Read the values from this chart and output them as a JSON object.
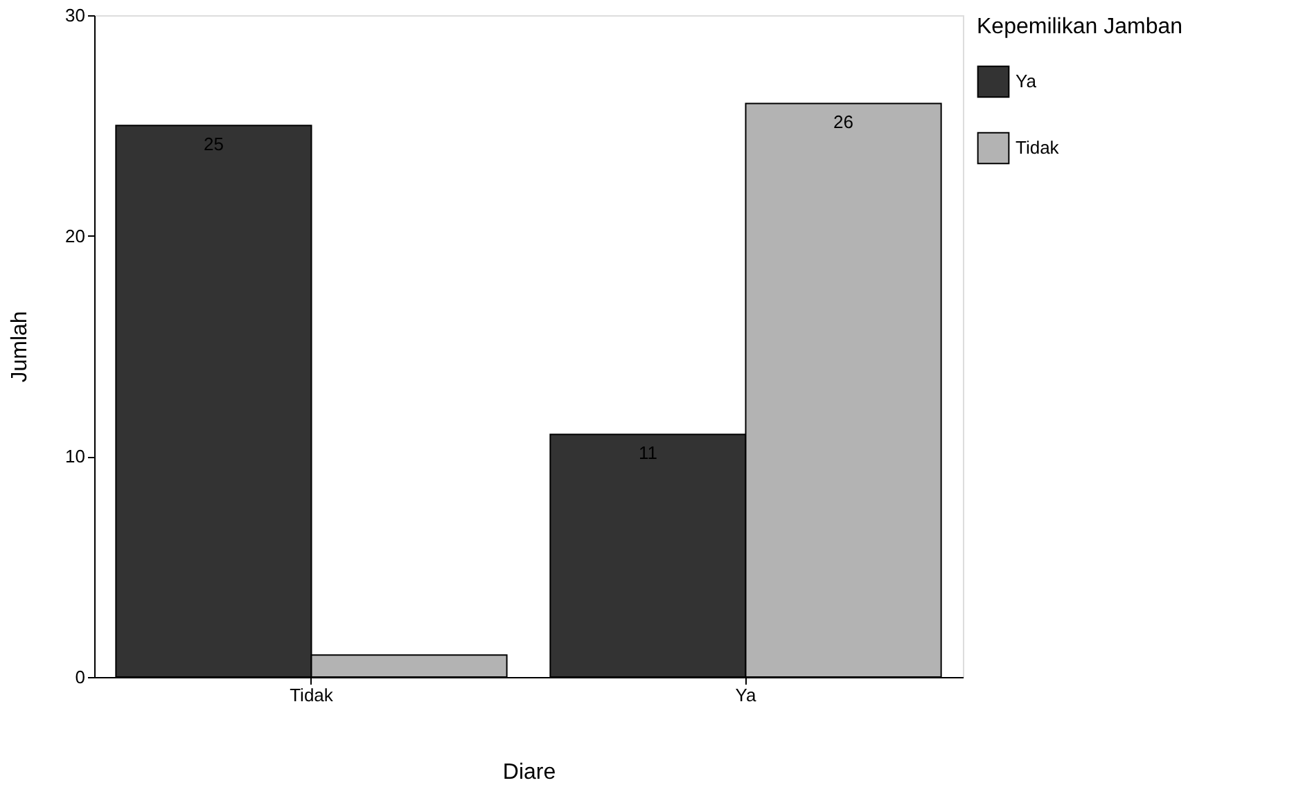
{
  "chart_data": {
    "type": "bar",
    "xlabel": "Diare",
    "ylabel": "Jumlah",
    "legend_title": "Kepemilikan Jamban",
    "categories": [
      "Tidak",
      "Ya"
    ],
    "series": [
      {
        "name": "Ya",
        "color": "#333333",
        "values": [
          25,
          11
        ],
        "value_labels": [
          "25",
          "11"
        ]
      },
      {
        "name": "Tidak",
        "color": "#b3b3b3",
        "values": [
          1,
          26
        ],
        "value_labels": [
          null,
          "26"
        ]
      }
    ],
    "ylim": [
      0,
      30
    ],
    "yticks": [
      0,
      10,
      20,
      30
    ],
    "grid": false,
    "legend": "right"
  }
}
